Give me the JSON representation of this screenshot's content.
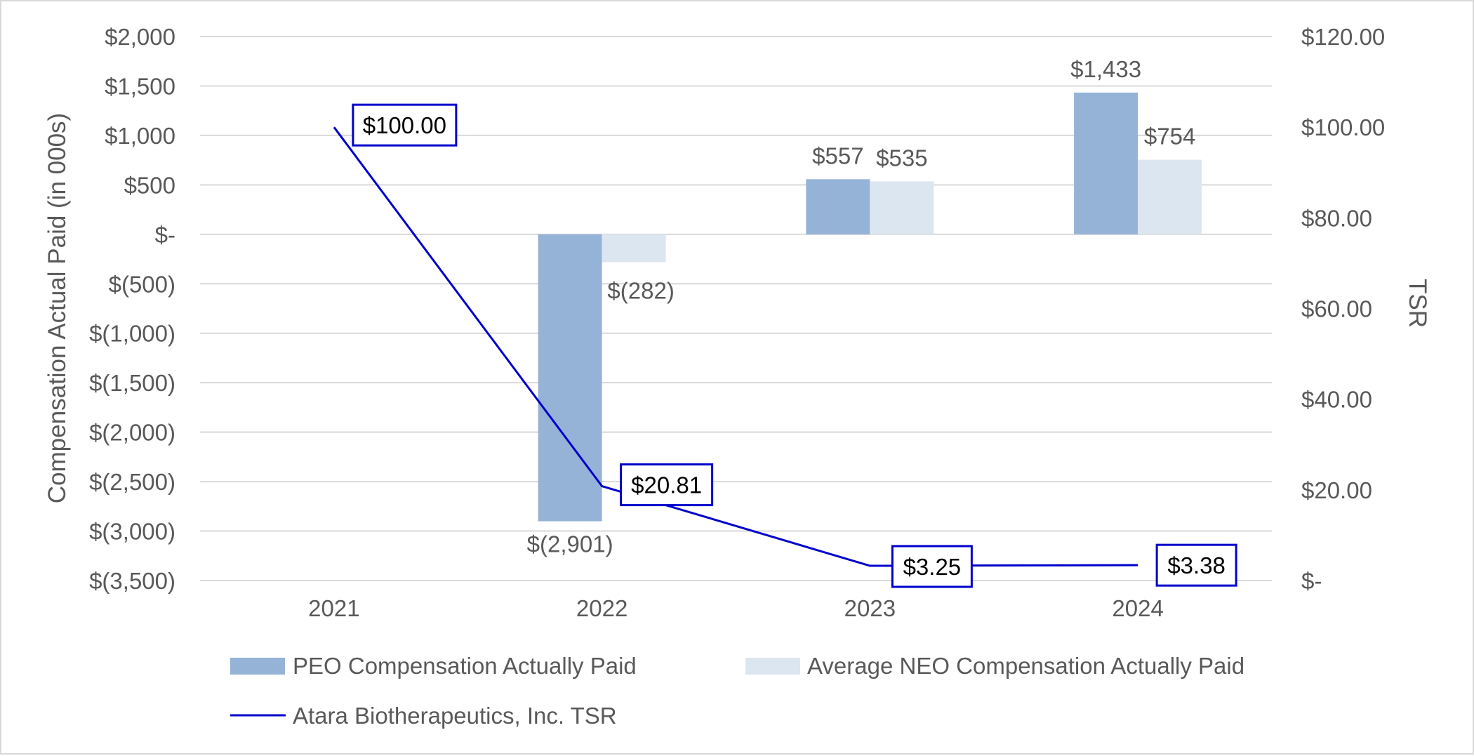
{
  "chart_data": {
    "type": "bar",
    "categories": [
      "2021",
      "2022",
      "2023",
      "2024"
    ],
    "series": [
      {
        "name": "PEO Compensation Actually Paid",
        "kind": "bar",
        "axis": "left",
        "color": "#95b3d7",
        "values": [
          null,
          -2901,
          557,
          1433
        ],
        "labels": [
          "",
          "$(2,901)",
          "$557",
          "$1,433"
        ]
      },
      {
        "name": "Average NEO Compensation Actually Paid",
        "kind": "bar",
        "axis": "left",
        "color": "#dce6f1",
        "values": [
          null,
          -282,
          535,
          754
        ],
        "labels": [
          "",
          "$(282)",
          "$535",
          "$754"
        ]
      },
      {
        "name": "Atara Biotherapeutics, Inc. TSR",
        "kind": "line",
        "axis": "right",
        "color": "#0000cc",
        "values": [
          100.0,
          20.81,
          3.25,
          3.38
        ],
        "labels": [
          "$100.00",
          "$20.81",
          "$3.25",
          "$3.38"
        ]
      }
    ],
    "y_left": {
      "label": "Compensation Actual Paid (in 000s)",
      "ylim": [
        -3500,
        2000
      ],
      "ticks": [
        2000,
        1500,
        1000,
        500,
        0,
        -500,
        -1000,
        -1500,
        -2000,
        -2500,
        -3000,
        -3500
      ],
      "tick_labels": [
        "$2,000",
        "$1,500",
        "$1,000",
        "$500",
        "$-",
        "$(500)",
        "$(1,000)",
        "$(1,500)",
        "$(2,000)",
        "$(2,500)",
        "$(3,000)",
        "$(3,500)"
      ]
    },
    "y_right": {
      "label": "TSR",
      "ylim": [
        0,
        120
      ],
      "ticks": [
        120,
        100,
        80,
        60,
        40,
        20,
        0
      ],
      "tick_labels": [
        "$120.00",
        "$100.00",
        "$80.00",
        "$60.00",
        "$40.00",
        "$20.00",
        "$-"
      ]
    },
    "grid": true,
    "legend_position": "bottom",
    "colors": {
      "grid": "#d9d9d9",
      "text": "#595959",
      "tsr_label_text": "#000000",
      "tsr_label_border": "#0000cc"
    }
  }
}
